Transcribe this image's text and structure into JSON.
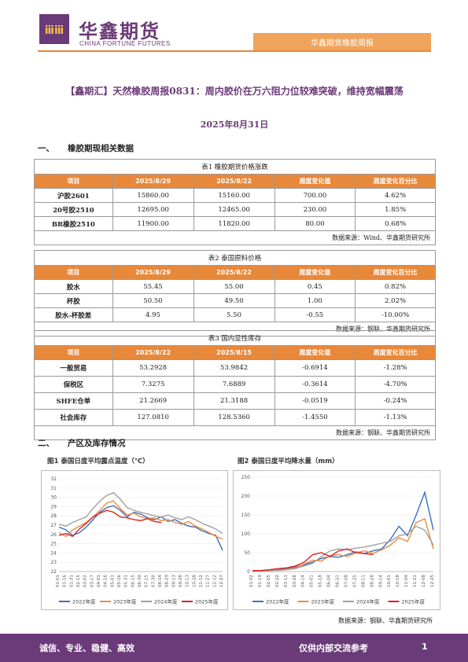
{
  "header": {
    "logo_cn": "华鑫期货",
    "logo_en": "CHINA FORTUNE FUTURES",
    "band_text": "华鑫期货橡胶周报"
  },
  "title": "【鑫期汇】天然橡胶周报0831：周内胶价在万六阻力位较难突破，维持宽幅震荡",
  "date": "2025年8月31日",
  "section1": {
    "num": "一、",
    "label": "橡胶期现相关数据"
  },
  "section2": {
    "num": "二、",
    "label": "产区及库存情况"
  },
  "table1": {
    "caption": "表1 橡胶期货价格涨跌",
    "headers": [
      "项目",
      "2025/8/29",
      "2025/8/22",
      "周度变化值",
      "周度变化百分比"
    ],
    "rows": [
      [
        "沪胶2601",
        "15860.00",
        "15160.00",
        "700.00",
        "4.62%"
      ],
      [
        "20号胶2510",
        "12695.00",
        "12465.00",
        "230.00",
        "1.85%"
      ],
      [
        "BR橡胶2510",
        "11900.00",
        "11820.00",
        "80.00",
        "0.68%"
      ]
    ],
    "source": "数据来源：Wind、华鑫期货研究所"
  },
  "table2": {
    "caption": "表2 泰国原料价格",
    "headers": [
      "项目",
      "2025/8/29",
      "2025/8/22",
      "周度变化值",
      "周度变化百分比"
    ],
    "rows": [
      [
        "胶水",
        "55.45",
        "55.00",
        "0.45",
        "0.82%"
      ],
      [
        "杯胶",
        "50.50",
        "49.50",
        "1.00",
        "2.02%"
      ],
      [
        "胶水-杯胶差",
        "4.95",
        "5.50",
        "-0.55",
        "-10.00%"
      ]
    ],
    "source": "数据来源：钢联、华鑫期货研究所"
  },
  "table3": {
    "caption": "表3 国内显性库存",
    "headers": [
      "项目",
      "2025/8/22",
      "2025/8/15",
      "周度变化值",
      "周度变化百分比"
    ],
    "rows": [
      [
        "一般贸易",
        "53.2928",
        "53.9842",
        "-0.6914",
        "-1.28%"
      ],
      [
        "保税区",
        "7.3275",
        "7.6889",
        "-0.3614",
        "-4.70%"
      ],
      [
        "SHFE仓单",
        "21.2669",
        "21.3188",
        "-0.0519",
        "-0.24%"
      ],
      [
        "社会库存",
        "127.0810",
        "128.5360",
        "-1.4550",
        "-1.13%"
      ]
    ],
    "source": "数据来源：钢联、华鑫期货研究所"
  },
  "chart_data": [
    {
      "type": "line",
      "title": "图1 泰国日度平均露点温度（℃）",
      "ylim": [
        22,
        32
      ],
      "yticks": [
        "32",
        "31",
        "30",
        "29",
        "28",
        "27",
        "26",
        "25",
        "24",
        "23",
        "22"
      ],
      "x": [
        "01-01",
        "01-16",
        "01-31",
        "02-15",
        "03-02",
        "03-17",
        "04-01",
        "04-16",
        "05-01",
        "05-16",
        "05-31",
        "06-15",
        "06-30",
        "07-15",
        "07-30",
        "08-14",
        "08-29",
        "09-13",
        "09-28",
        "10-13",
        "10-28",
        "11-12",
        "11-27",
        "12-12",
        "12-27"
      ],
      "series": [
        {
          "name": "2022年度",
          "color": "#3a6fc8",
          "values": [
            26.8,
            26.5,
            25.9,
            26.2,
            26.8,
            27.6,
            28.4,
            28.9,
            29.1,
            28.6,
            27.9,
            28.4,
            28.2,
            27.8,
            27.6,
            27.9,
            27.4,
            27.6,
            27.2,
            26.9,
            26.8,
            26.4,
            26.1,
            25.9,
            24.3
          ]
        },
        {
          "name": "2023年度",
          "color": "#f08a3a",
          "values": [
            26.2,
            25.8,
            26.5,
            26.9,
            27.3,
            27.9,
            28.6,
            29.4,
            29.6,
            28.8,
            28.1,
            28.3,
            27.9,
            27.7,
            27.8,
            27.5,
            27.6,
            27.3,
            27.1,
            27.4,
            26.9,
            26.6,
            26.2,
            25.8,
            25.5
          ]
        },
        {
          "name": "2024年度",
          "color": "#a0a0a0",
          "values": [
            27.1,
            26.9,
            27.3,
            27.6,
            27.9,
            28.8,
            29.6,
            30.2,
            30.5,
            29.8,
            28.9,
            28.6,
            28.4,
            28.2,
            28.0,
            27.9,
            28.1,
            27.8,
            27.6,
            27.9,
            27.6,
            27.2,
            26.9,
            26.6,
            26.1
          ]
        },
        {
          "name": "2025年度",
          "color": "#e02020",
          "values": [
            25.9,
            26.1,
            25.8,
            26.6,
            27.2,
            27.9,
            28.3,
            28.6,
            28.4,
            27.9,
            27.8,
            27.6,
            27.5,
            27.7,
            27.4,
            27.3,
            null,
            null,
            null,
            null,
            null,
            null,
            null,
            null,
            null
          ]
        }
      ]
    },
    {
      "type": "line",
      "title": "图2 泰国日度平均降水量（mm）",
      "ylim": [
        0,
        250
      ],
      "yticks": [
        "250",
        "200",
        "150",
        "100",
        "50",
        "0"
      ],
      "x": [
        "01-02",
        "01-19",
        "02-05",
        "02-22",
        "03-11",
        "03-28",
        "04-14",
        "05-01",
        "05-18",
        "06-04",
        "06-21",
        "07-08",
        "07-25",
        "08-11",
        "08-28",
        "09-14",
        "10-01",
        "10-18",
        "11-04",
        "11-21",
        "12-08",
        "12-25"
      ],
      "series": [
        {
          "name": "2022年度",
          "color": "#3a6fc8",
          "values": [
            2,
            1,
            3,
            5,
            8,
            12,
            18,
            25,
            35,
            40,
            38,
            45,
            52,
            48,
            55,
            60,
            85,
            120,
            95,
            150,
            210,
            110
          ]
        },
        {
          "name": "2023年度",
          "color": "#f08a3a",
          "values": [
            3,
            2,
            2,
            4,
            6,
            10,
            20,
            30,
            28,
            42,
            45,
            40,
            50,
            55,
            48,
            58,
            70,
            90,
            80,
            130,
            140,
            60
          ]
        },
        {
          "name": "2024年度",
          "color": "#a0a0a0",
          "values": [
            1,
            2,
            4,
            3,
            5,
            8,
            15,
            22,
            40,
            55,
            60,
            58,
            62,
            65,
            70,
            75,
            80,
            95,
            100,
            120,
            110,
            70
          ]
        },
        {
          "name": "2025年度",
          "color": "#e02020",
          "values": [
            2,
            3,
            5,
            8,
            10,
            15,
            25,
            45,
            50,
            40,
            55,
            60,
            50,
            48,
            45,
            null,
            null,
            null,
            null,
            null,
            null,
            null
          ]
        }
      ]
    }
  ],
  "figure_source": "数据来源：钢联、华鑫期货研究所",
  "footer": {
    "left": "诚信、专业、稳健、高效",
    "middle": "仅供内部交流参考",
    "page": "1"
  }
}
